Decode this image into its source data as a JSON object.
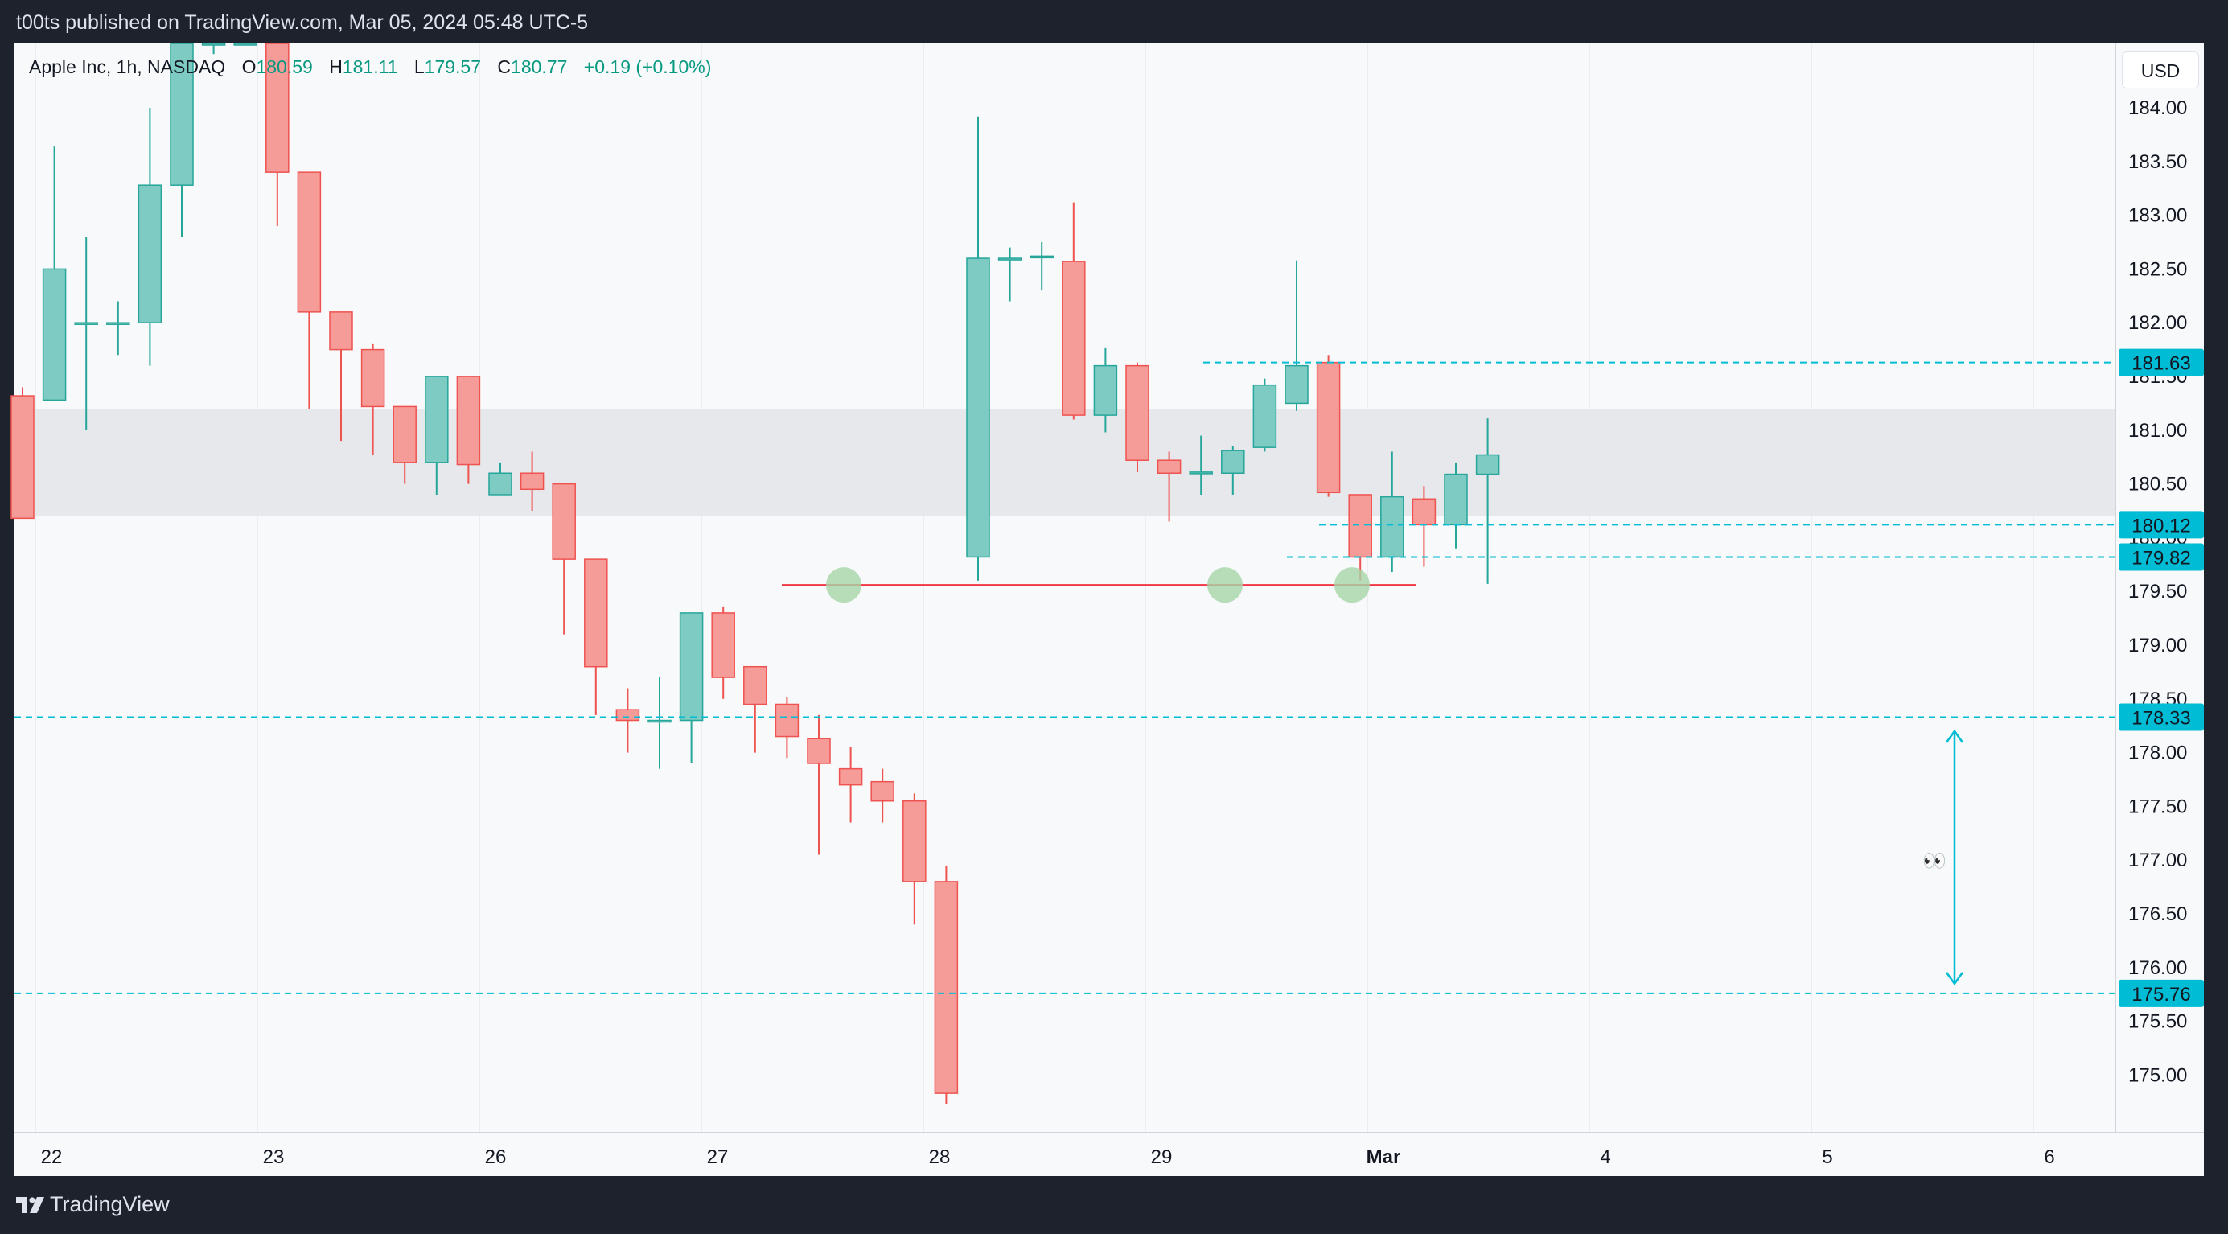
{
  "header": {
    "publish_text": "t00ts published on TradingView.com, Mar 05, 2024 05:48 UTC-5"
  },
  "legend": {
    "symbol": "Apple Inc, 1h, NASDAQ",
    "open_label": "O",
    "open": "180.59",
    "high_label": "H",
    "high": "181.11",
    "low_label": "L",
    "low": "179.57",
    "close_label": "C",
    "close": "180.77",
    "change": "+0.19 (+0.10%)"
  },
  "currency": "USD",
  "footer": {
    "brand": "TradingView"
  },
  "annotation": {
    "emoji": "👀"
  },
  "colors": {
    "up": "#26a69a",
    "up_fill": "#7dcbc2",
    "down": "#ef5350",
    "down_fill": "#f59b98",
    "level": "#00bcd4",
    "support": "#f23645",
    "touch_marker": "#a5d6a7",
    "zone": "#e6e8ec"
  },
  "chart_data": {
    "type": "candlestick",
    "symbol": "AAPL",
    "timeframe": "1h",
    "ylim": [
      174.5,
      184.8
    ],
    "y_ticks": [
      "184.00",
      "183.50",
      "183.00",
      "182.50",
      "182.00",
      "181.50",
      "181.00",
      "180.50",
      "180.00",
      "179.50",
      "179.00",
      "178.50",
      "178.00",
      "177.50",
      "177.00",
      "176.50",
      "176.00",
      "175.50",
      "175.00"
    ],
    "x_ticks": [
      "22",
      "23",
      "26",
      "27",
      "28",
      "29",
      "Mar",
      "4",
      "5",
      "6"
    ],
    "candles": [
      [
        181.32,
        180.18,
        181.4,
        180.18
      ],
      [
        181.28,
        182.5,
        183.64,
        182.5
      ],
      [
        182.0,
        182.0,
        182.8,
        181.0
      ],
      [
        182.0,
        182.0,
        182.2,
        181.7
      ],
      [
        182.0,
        183.28,
        184.0,
        181.6
      ],
      [
        183.28,
        185.0,
        185.3,
        182.8
      ],
      [
        185.0,
        185.3,
        185.6,
        184.5
      ],
      [
        185.2,
        185.3,
        185.6,
        184.6
      ],
      [
        184.8,
        183.4,
        185.0,
        182.9
      ],
      [
        183.4,
        182.1,
        182.5,
        181.2
      ],
      [
        182.1,
        181.75,
        181.9,
        180.9
      ],
      [
        181.75,
        181.22,
        181.8,
        180.77
      ],
      [
        181.22,
        180.7,
        180.99,
        180.5
      ],
      [
        180.7,
        181.5,
        181.5,
        180.4
      ],
      [
        181.5,
        180.68,
        181.5,
        180.5
      ],
      [
        180.4,
        180.6,
        180.7,
        180.4
      ],
      [
        180.6,
        180.45,
        180.8,
        180.25
      ],
      [
        180.5,
        179.8,
        180.5,
        179.1
      ],
      [
        179.8,
        178.8,
        179.55,
        178.35
      ],
      [
        178.4,
        178.3,
        178.6,
        178.0
      ],
      [
        178.3,
        178.3,
        178.7,
        177.85
      ],
      [
        178.3,
        179.3,
        179.3,
        177.9
      ],
      [
        179.3,
        178.7,
        179.36,
        178.5
      ],
      [
        178.8,
        178.45,
        178.6,
        178.0
      ],
      [
        178.45,
        178.15,
        178.52,
        177.95
      ],
      [
        178.13,
        177.9,
        178.35,
        177.05
      ],
      [
        177.85,
        177.7,
        178.05,
        177.35
      ],
      [
        177.73,
        177.55,
        177.85,
        177.35
      ],
      [
        177.55,
        176.8,
        177.62,
        176.4
      ],
      [
        176.8,
        174.83,
        176.95,
        174.73
      ],
      [
        179.82,
        182.6,
        183.92,
        179.6
      ],
      [
        182.6,
        182.6,
        182.7,
        182.2
      ],
      [
        182.62,
        182.62,
        182.75,
        182.3
      ],
      [
        182.57,
        181.14,
        183.12,
        181.1
      ],
      [
        181.14,
        181.6,
        181.77,
        180.98
      ],
      [
        181.6,
        180.72,
        181.63,
        180.61
      ],
      [
        180.72,
        180.6,
        180.8,
        180.15
      ],
      [
        180.6,
        180.61,
        180.95,
        180.4
      ],
      [
        180.6,
        180.81,
        180.85,
        180.4
      ],
      [
        180.84,
        181.42,
        181.48,
        180.8
      ],
      [
        181.25,
        181.6,
        182.58,
        181.18
      ],
      [
        181.63,
        180.42,
        181.7,
        180.38
      ],
      [
        180.4,
        179.82,
        180.4,
        179.6
      ],
      [
        179.82,
        180.38,
        180.8,
        179.68
      ],
      [
        180.36,
        180.12,
        180.48,
        179.73
      ],
      [
        180.12,
        180.59,
        180.7,
        179.9
      ],
      [
        180.59,
        180.77,
        181.11,
        179.57
      ]
    ],
    "levels": [
      181.63,
      180.12,
      179.82,
      178.33,
      175.76
    ],
    "level_labels": [
      "181.63",
      "180.12",
      "179.82",
      "178.33",
      "175.76"
    ],
    "support_line": 179.56,
    "resistance_zone": [
      180.2,
      181.2
    ],
    "touch_points": [
      179.56,
      179.56,
      179.56
    ],
    "target_arrow": [
      178.2,
      175.85
    ]
  }
}
